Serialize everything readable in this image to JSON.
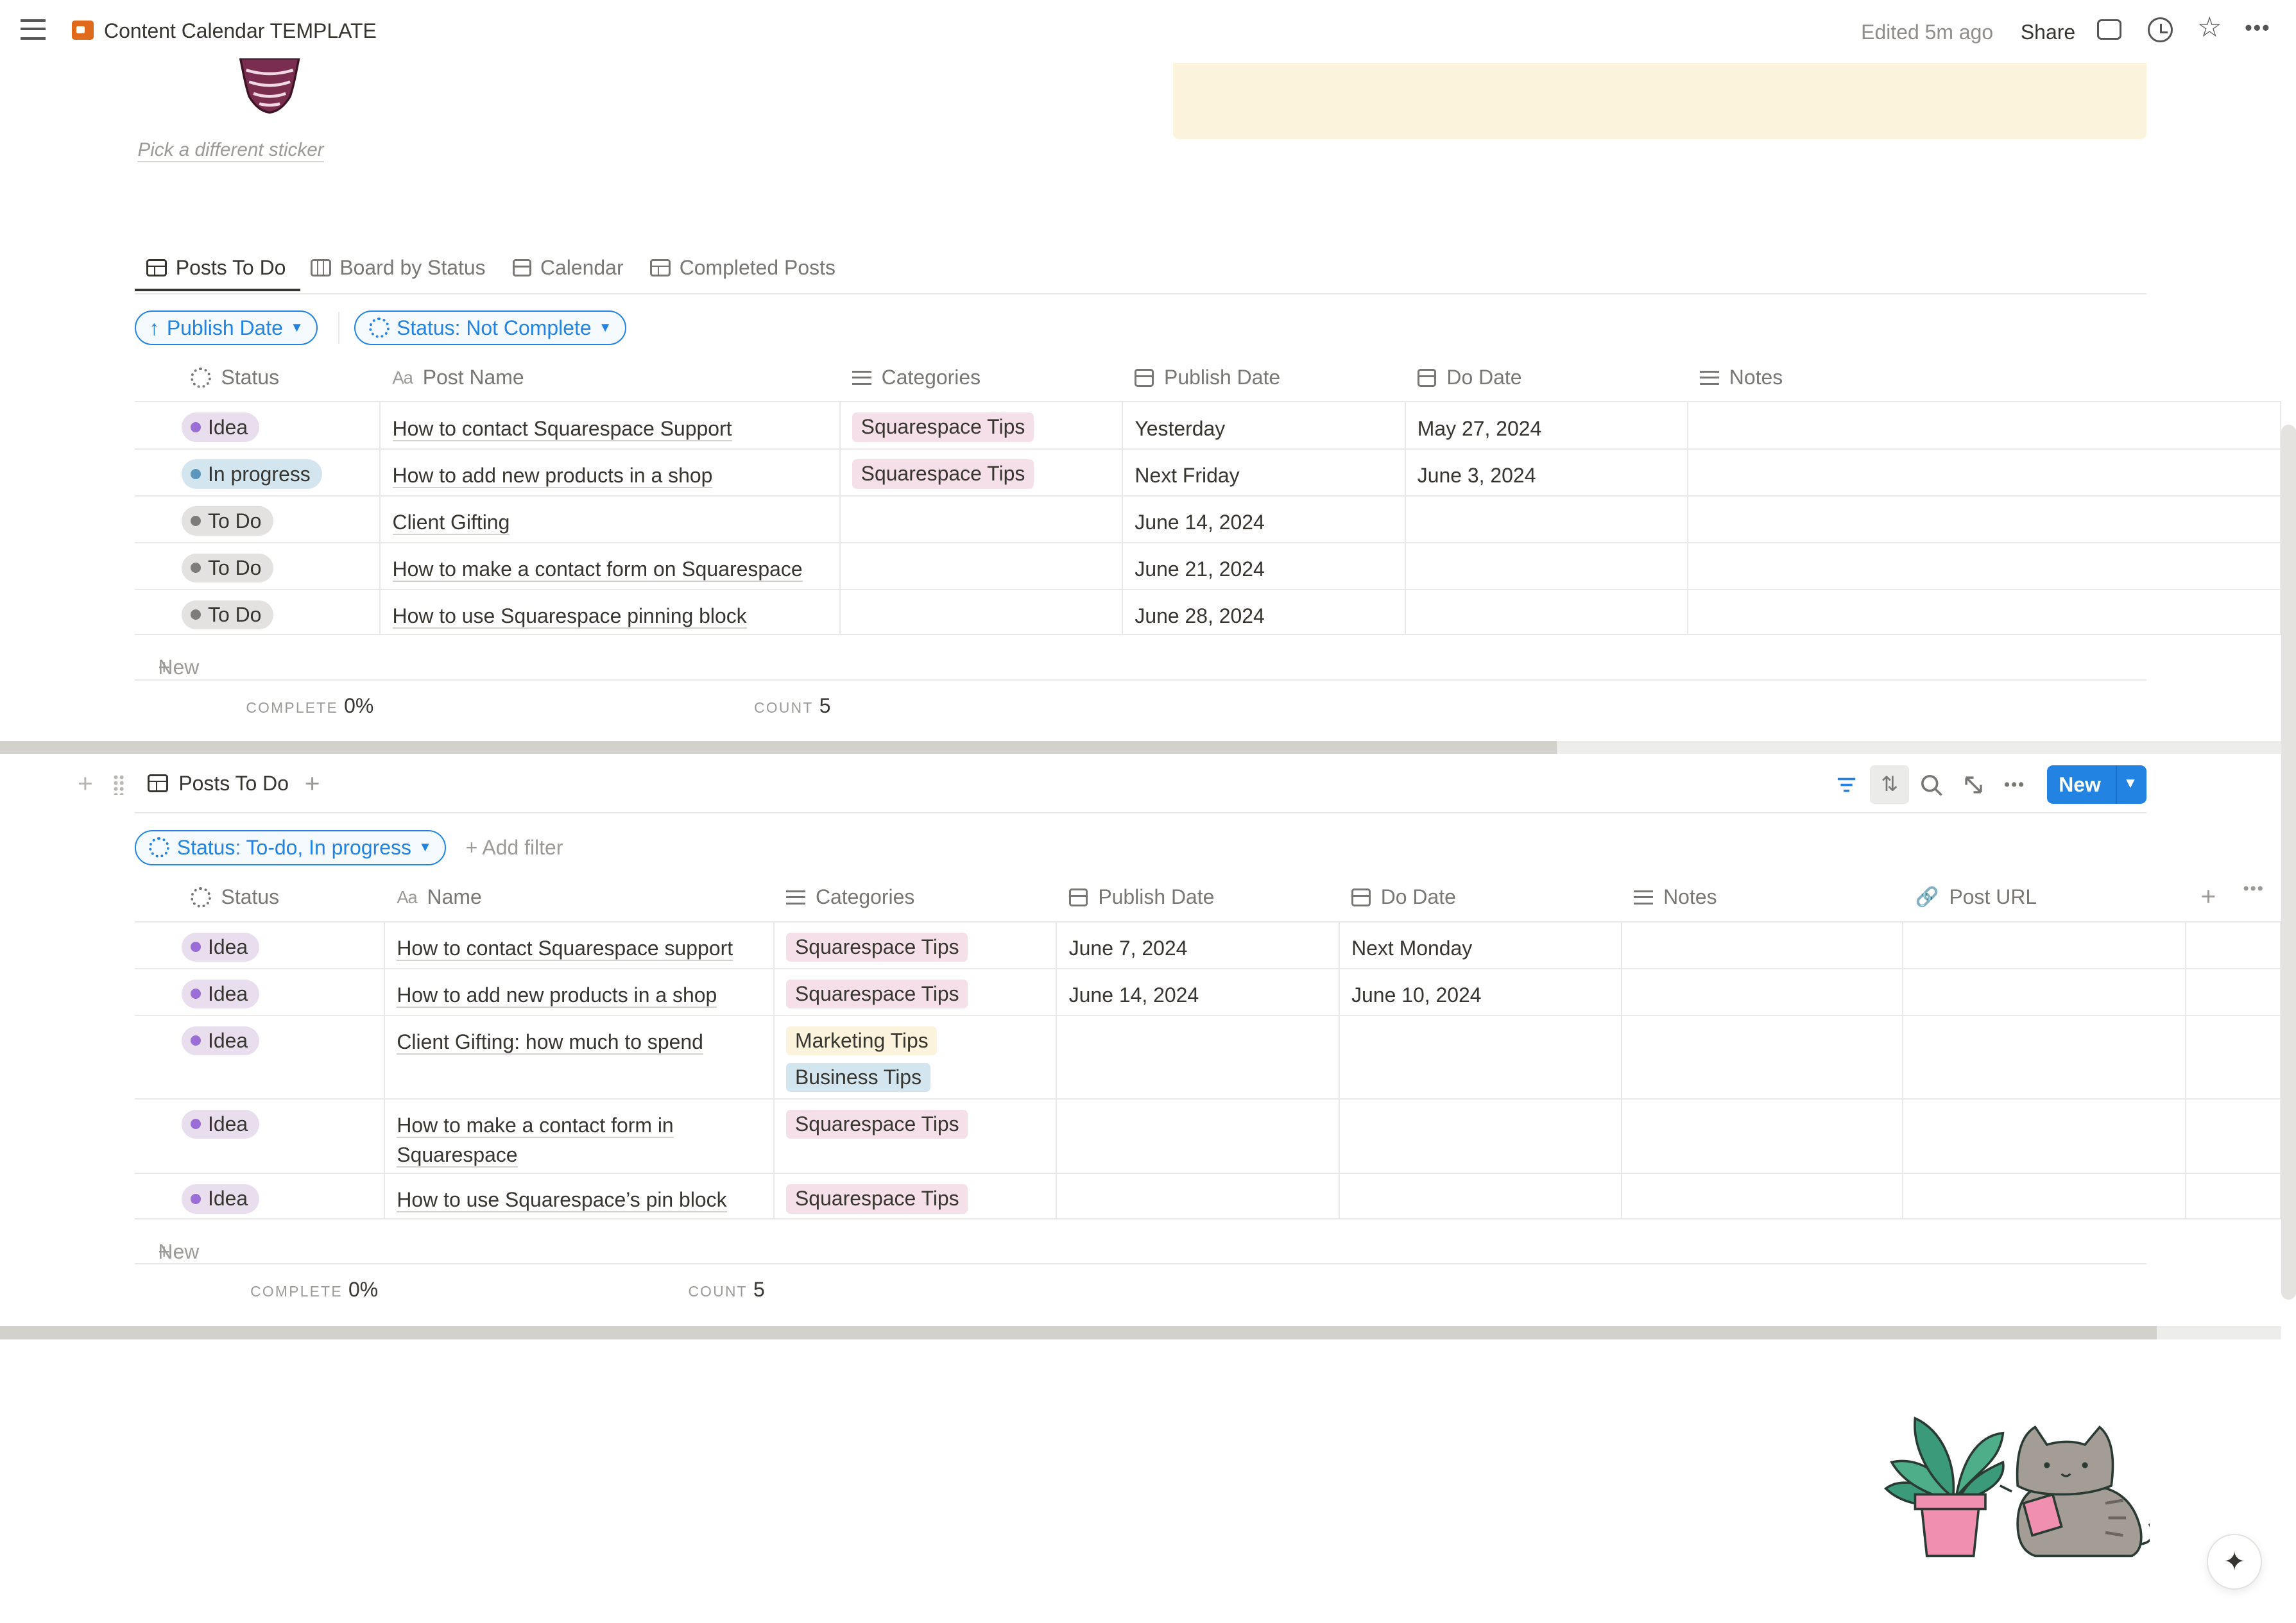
{
  "topbar": {
    "title": "Content Calendar TEMPLATE",
    "edited": "Edited 5m ago",
    "share": "Share"
  },
  "header": {
    "pick_sticker": "Pick a different sticker"
  },
  "tabs": [
    {
      "label": "Posts To Do",
      "icon": "table-icon"
    },
    {
      "label": "Board by Status",
      "icon": "board-icon"
    },
    {
      "label": "Calendar",
      "icon": "calendar-icon"
    },
    {
      "label": "Completed Posts",
      "icon": "table-icon"
    }
  ],
  "view1": {
    "filters": [
      "Publish Date",
      "Status: Not Complete"
    ],
    "columns": [
      "Status",
      "Post Name",
      "Categories",
      "Publish Date",
      "Do Date",
      "Notes"
    ],
    "rows": [
      {
        "status": "Idea",
        "name": "How to contact Squarespace Support",
        "categories": [
          "Squarespace Tips"
        ],
        "publish": "Yesterday",
        "do": "May 27, 2024"
      },
      {
        "status": "In progress",
        "name": "How to add new products in a shop",
        "categories": [
          "Squarespace Tips"
        ],
        "publish": "Next Friday",
        "do": "June 3, 2024"
      },
      {
        "status": "To Do",
        "name": "Client Gifting",
        "categories": [],
        "publish": "June 14, 2024",
        "do": ""
      },
      {
        "status": "To Do",
        "name": "How to make a contact form on Squarespace",
        "categories": [],
        "publish": "June 21, 2024",
        "do": ""
      },
      {
        "status": "To Do",
        "name": "How to use Squarespace pinning block",
        "categories": [],
        "publish": "June 28, 2024",
        "do": ""
      }
    ],
    "new_label": "New",
    "calc_complete_label": "COMPLETE",
    "calc_complete_value": "0%",
    "calc_count_label": "COUNT",
    "calc_count_value": "5"
  },
  "view2": {
    "title": "Posts To Do",
    "new_button": "New",
    "filter": "Status: To-do, In progress",
    "add_filter": "Add filter",
    "columns": [
      "Status",
      "Name",
      "Categories",
      "Publish Date",
      "Do Date",
      "Notes",
      "Post URL"
    ],
    "rows": [
      {
        "status": "Idea",
        "name": "How to contact Squarespace support",
        "categories": [
          "Squarespace Tips"
        ],
        "publish": "June 7, 2024",
        "do": "Next Monday"
      },
      {
        "status": "Idea",
        "name": "How to add new products in a shop",
        "categories": [
          "Squarespace Tips"
        ],
        "publish": "June 14, 2024",
        "do": "June 10, 2024"
      },
      {
        "status": "Idea",
        "name": "Client Gifting: how much to spend",
        "categories": [
          "Marketing Tips",
          "Business Tips"
        ],
        "publish": "",
        "do": ""
      },
      {
        "status": "Idea",
        "name": "How to make a contact form in Squarespace",
        "categories": [
          "Squarespace Tips"
        ],
        "publish": "",
        "do": ""
      },
      {
        "status": "Idea",
        "name": "How to use Squarespace’s pin block",
        "categories": [
          "Squarespace Tips"
        ],
        "publish": "",
        "do": ""
      }
    ],
    "new_label": "New",
    "calc_complete_label": "COMPLETE",
    "calc_complete_value": "0%",
    "calc_count_label": "COUNT",
    "calc_count_value": "5"
  },
  "colors": {
    "accent": "#2383e2",
    "callout": "#fbf3db",
    "status_idea_bg": "#e8deee",
    "status_idea_dot": "#9a6dd7",
    "status_progress_bg": "#d3e5ef",
    "status_progress_dot": "#5b97bd",
    "status_todo_bg": "#e3e2e0",
    "status_todo_dot": "#7d7c78",
    "tag_squarespace": "#f5e0e9",
    "tag_marketing": "#fbf3db",
    "tag_business": "#d3e5ef"
  }
}
